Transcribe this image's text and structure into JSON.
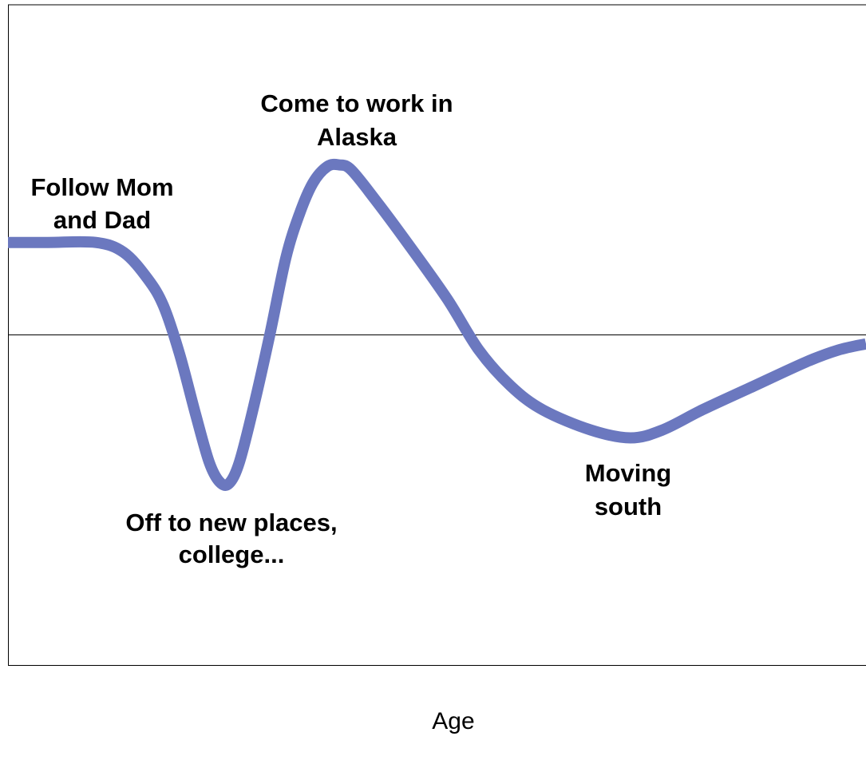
{
  "chart_data": {
    "type": "line",
    "xlabel": "Age",
    "annotations": [
      [
        "Follow Mom",
        "and Dad"
      ],
      [
        "Come to work in",
        "Alaska"
      ],
      [
        "Off to new places,",
        "college..."
      ],
      [
        "Moving",
        "south"
      ]
    ],
    "x": [
      0,
      50,
      110,
      145,
      175,
      195,
      215,
      235,
      252,
      265,
      277,
      290,
      308,
      328,
      348,
      365,
      382,
      400,
      415,
      430,
      460,
      500,
      550,
      590,
      630,
      670,
      730,
      780,
      820,
      870,
      930,
      1000,
      1040,
      1075
    ],
    "series": [
      {
        "color": "#6b78bf",
        "values": [
          0.28,
          0.28,
          0.28,
          0.25,
          0.17,
          0.087,
          -0.058,
          -0.24,
          -0.385,
          -0.445,
          -0.45,
          -0.385,
          -0.215,
          0,
          0.232,
          0.365,
          0.46,
          0.51,
          0.515,
          0.5,
          0.41,
          0.28,
          0.11,
          -0.046,
          -0.155,
          -0.227,
          -0.288,
          -0.312,
          -0.288,
          -0.227,
          -0.16,
          -0.082,
          -0.046,
          -0.027
        ]
      }
    ],
    "xlim": [
      0,
      1075
    ],
    "ylim": [
      -1,
      1
    ]
  }
}
